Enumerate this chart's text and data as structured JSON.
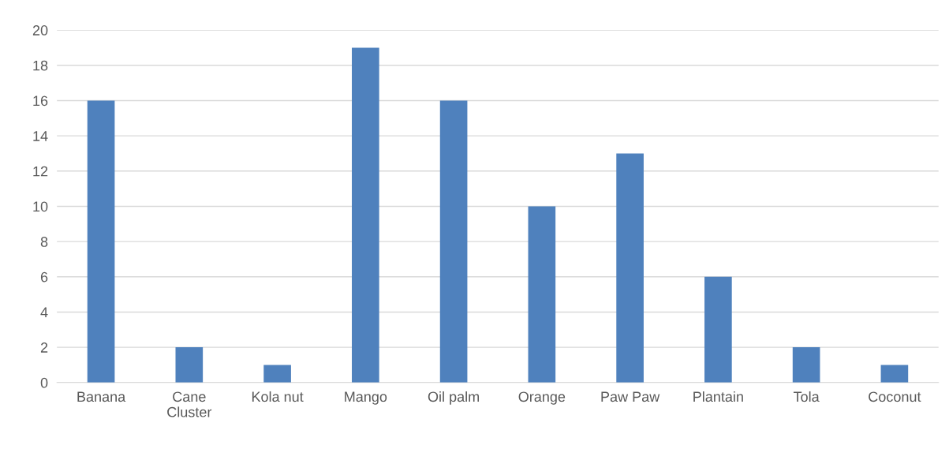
{
  "chart_data": {
    "type": "bar",
    "categories": [
      "Banana",
      "Cane\nCluster",
      "Kola nut",
      "Mango",
      "Oil palm",
      "Orange",
      "Paw Paw",
      "Plantain",
      "Tola",
      "Coconut"
    ],
    "values": [
      16,
      2,
      1,
      19,
      16,
      10,
      13,
      6,
      2,
      1
    ],
    "color": "#4f81bd",
    "ylim": [
      0,
      20
    ],
    "yticks": [
      0,
      2,
      4,
      6,
      8,
      10,
      12,
      14,
      16,
      18,
      20
    ],
    "grid": "y",
    "legend": false
  }
}
